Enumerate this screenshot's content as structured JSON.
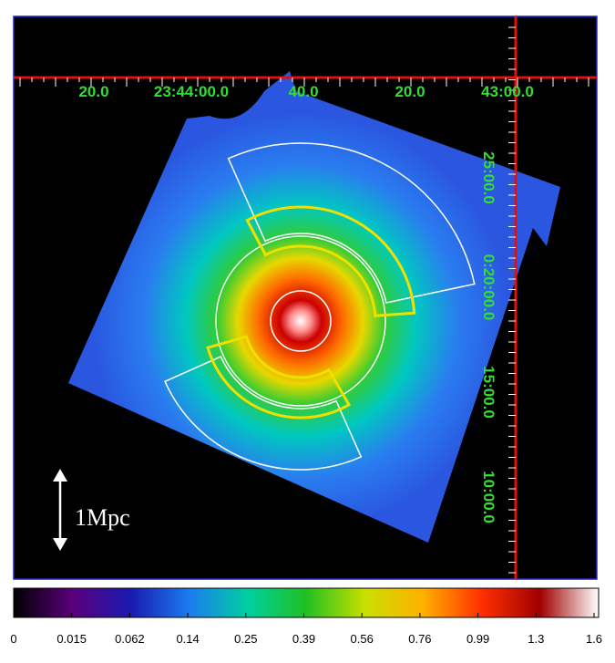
{
  "ra_labels": [
    "20.0",
    "23:44:00.0",
    "40.0",
    "20.0",
    "43:00.0"
  ],
  "dec_labels": [
    "25:00.0",
    "0:20:00.0",
    "15:00.0",
    "10:00.0"
  ],
  "scale_label": "1Mpc",
  "colorbar_labels": [
    "0",
    "0.015",
    "0.062",
    "0.14",
    "0.25",
    "0.39",
    "0.56",
    "0.76",
    "0.99",
    "1.3",
    "1.6"
  ]
}
